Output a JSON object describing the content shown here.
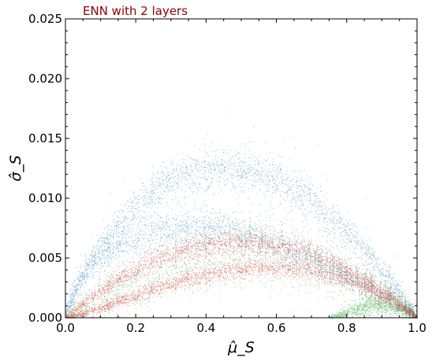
{
  "chart_data": {
    "type": "scatter",
    "title": "ENN with 2 layers",
    "title_color": "#8b0000",
    "xlabel": "μ̂_S",
    "ylabel": "σ̂_S",
    "xlim": [
      0.0,
      1.0
    ],
    "ylim": [
      0.0,
      0.025
    ],
    "x_ticks": [
      "0.0",
      "0.2",
      "0.4",
      "0.6",
      "0.8",
      "1.0"
    ],
    "y_ticks": [
      "0.000",
      "0.005",
      "0.010",
      "0.015",
      "0.020",
      "0.025"
    ],
    "grid": false,
    "series": [
      {
        "color": "#1f77b4",
        "bands": [
          {
            "x_range": [
              0.0,
              1.0
            ],
            "peak_x": 0.45,
            "peak_y": 0.0125,
            "spread": 0.0009
          },
          {
            "x_range": [
              0.0,
              1.0
            ],
            "peak_x": 0.35,
            "peak_y": 0.0075,
            "spread": 0.0008
          }
        ],
        "points": 5200
      },
      {
        "color": "#2ca02c",
        "bands": [
          {
            "x_range": [
              0.0,
              1.0
            ],
            "peak_x": 0.5,
            "peak_y": 0.0065,
            "spread": 0.0011
          },
          {
            "x_range": [
              0.0,
              1.0
            ],
            "peak_x": 0.55,
            "peak_y": 0.0045,
            "spread": 0.001
          },
          {
            "x_range": [
              0.75,
              1.0
            ],
            "peak_x": 0.9,
            "peak_y": 0.0011,
            "spread": 0.0004
          }
        ],
        "points": 3800
      },
      {
        "color": "#d62728",
        "bands": [
          {
            "x_range": [
              0.0,
              1.0
            ],
            "peak_x": 0.5,
            "peak_y": 0.0063,
            "spread": 0.0005
          },
          {
            "x_range": [
              0.0,
              1.0
            ],
            "peak_x": 0.58,
            "peak_y": 0.0042,
            "spread": 0.0004
          }
        ],
        "points": 5200
      }
    ]
  }
}
